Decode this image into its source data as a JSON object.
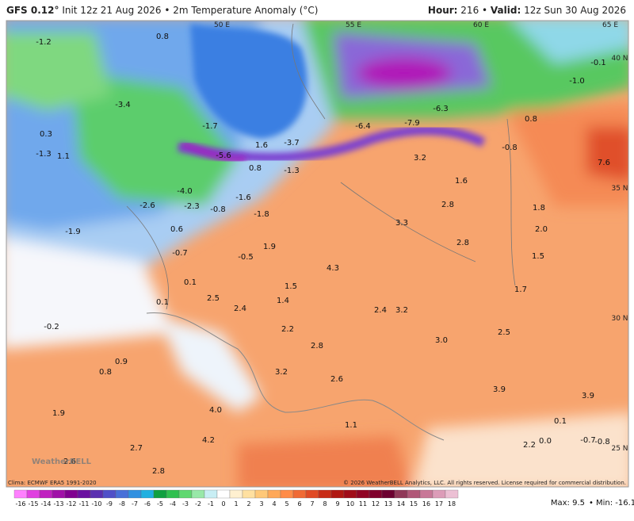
{
  "header": {
    "model": "GFS 0.12°",
    "init": "Init 12z 21 Aug 2026",
    "title": "2m Temperature Anomaly (°C)",
    "hour_label": "Hour:",
    "hour": "216",
    "valid_label": "Valid:",
    "valid": "12z Sun 30 Aug 2026"
  },
  "grid_labels": [
    "50 E",
    "55 E",
    "60 E",
    "65 E",
    "40 N",
    "35 N",
    "30 N",
    "25 N"
  ],
  "map_values": [
    "-1.2",
    "0.8",
    "-0.1",
    "-1.0",
    "0.3",
    "-1.3",
    "1.1",
    "-3.4",
    "-1.7",
    "1.6",
    "-3.7",
    "-1.3",
    "0.8",
    "-5.6",
    "-6.4",
    "-7.9",
    "-6.3",
    "0.8",
    "-0.8",
    "7.6",
    "3.2",
    "1.6",
    "2.8",
    "1.8",
    "2.0",
    "1.5",
    "3.3",
    "2.8",
    "-4.0",
    "-2.3",
    "-0.8",
    "-2.6",
    "-1.6",
    "-1.8",
    "0.6",
    "-0.7",
    "1.9",
    "-0.5",
    "4.3",
    "0.1",
    "1.5",
    "1.4",
    "2.5",
    "2.4",
    "2.4",
    "3.2",
    "2.2",
    "2.8",
    "3.0",
    "2.5",
    "3.9",
    "3.9",
    "0.9",
    "0.8",
    "-0.2",
    "1.9",
    "4.0",
    "2.6",
    "3.2",
    "1.1",
    "4.2",
    "2.7",
    "2.6",
    "2.8",
    "1.7",
    "0.1",
    "-0.7",
    "-0.8",
    "2.2",
    "0.0",
    "-1.9",
    "0.1"
  ],
  "logo": "WeatherBELL",
  "footer": {
    "clima": "Clima: ECMWF ERA5 1991-2020",
    "copyright": "© 2026 WeatherBELL Analytics, LLC. All rights reserved. License required for commercial distribution.",
    "max": "Max: 9.5",
    "min": "Min: -16.1"
  },
  "colorbar": {
    "ticks": [
      -16,
      -15,
      -14,
      -13,
      -12,
      -11,
      -10,
      -9,
      -8,
      -7,
      -6,
      -5,
      -4,
      -3,
      -2,
      -1,
      0,
      1,
      2,
      3,
      4,
      5,
      6,
      7,
      8,
      9,
      10,
      11,
      12,
      13,
      14,
      15,
      16,
      17,
      18
    ],
    "colors": [
      "#ff80ff",
      "#e040e0",
      "#c020c0",
      "#a010a8",
      "#800090",
      "#6a10a0",
      "#5a30b0",
      "#5050c8",
      "#4870d8",
      "#3090e0",
      "#20b0e0",
      "#10a040",
      "#30c050",
      "#60d870",
      "#98e8a8",
      "#c8eef4",
      "#ffffff",
      "#fff0d0",
      "#ffe0a0",
      "#ffc878",
      "#ffa858",
      "#ff8c48",
      "#f06a34",
      "#e04a24",
      "#c82c16",
      "#b01812",
      "#a00c18",
      "#900424",
      "#80002c",
      "#6c0030",
      "#903858",
      "#b05878",
      "#c87898",
      "#dc9cb8",
      "#ecc0d4"
    ]
  }
}
